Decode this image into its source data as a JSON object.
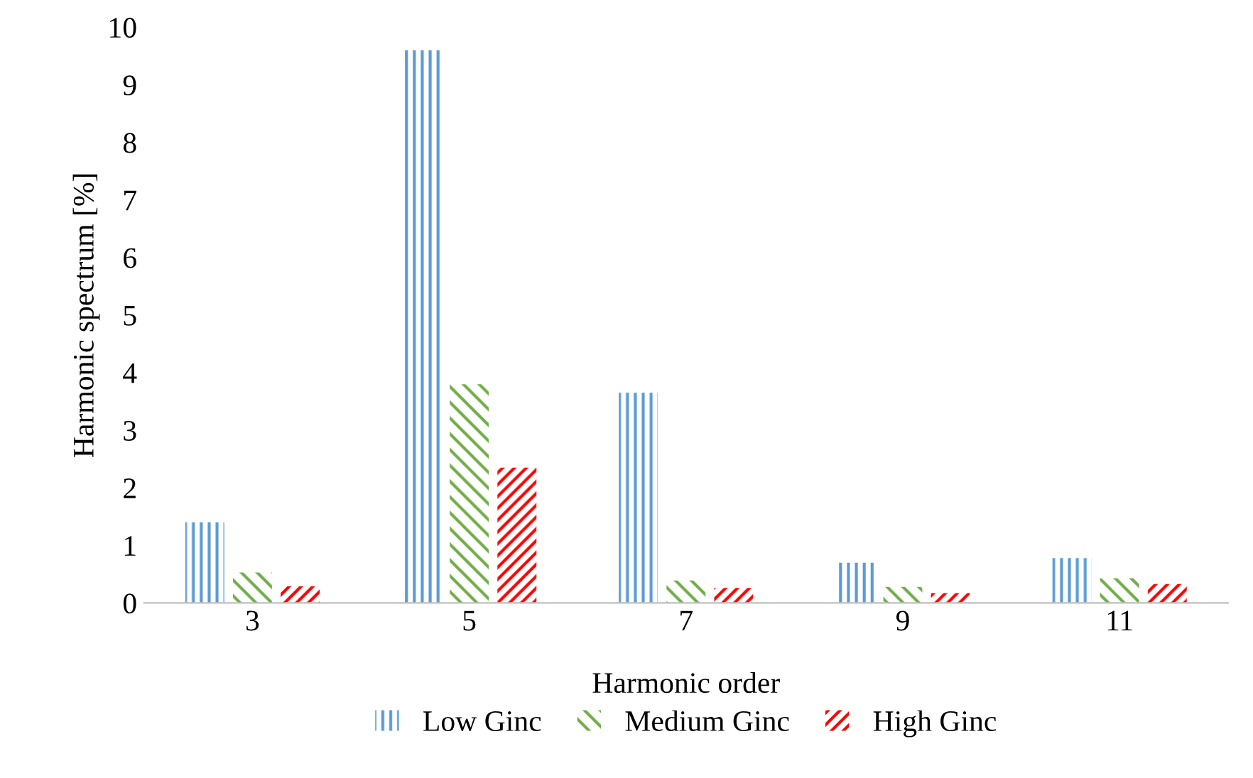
{
  "chart_data": {
    "type": "bar",
    "xlabel": "Harmonic order",
    "ylabel": "Harmonic spectrum [%]",
    "categories": [
      "3",
      "5",
      "7",
      "9",
      "11"
    ],
    "series": [
      {
        "name": "Low Ginc",
        "color": "#5b9bd5",
        "values": [
          1.4,
          9.6,
          3.65,
          0.7,
          0.78
        ]
      },
      {
        "name": "Medium Ginc",
        "color": "#70ad47",
        "values": [
          0.53,
          3.8,
          0.39,
          0.28,
          0.43
        ]
      },
      {
        "name": "High Ginc",
        "color": "#ff0000",
        "values": [
          0.29,
          2.35,
          0.26,
          0.17,
          0.33
        ]
      }
    ],
    "ylim": [
      0,
      10
    ],
    "yticks": [
      0,
      1,
      2,
      3,
      4,
      5,
      6,
      7,
      8,
      9,
      10
    ],
    "grid": false,
    "legend": "bottom"
  }
}
